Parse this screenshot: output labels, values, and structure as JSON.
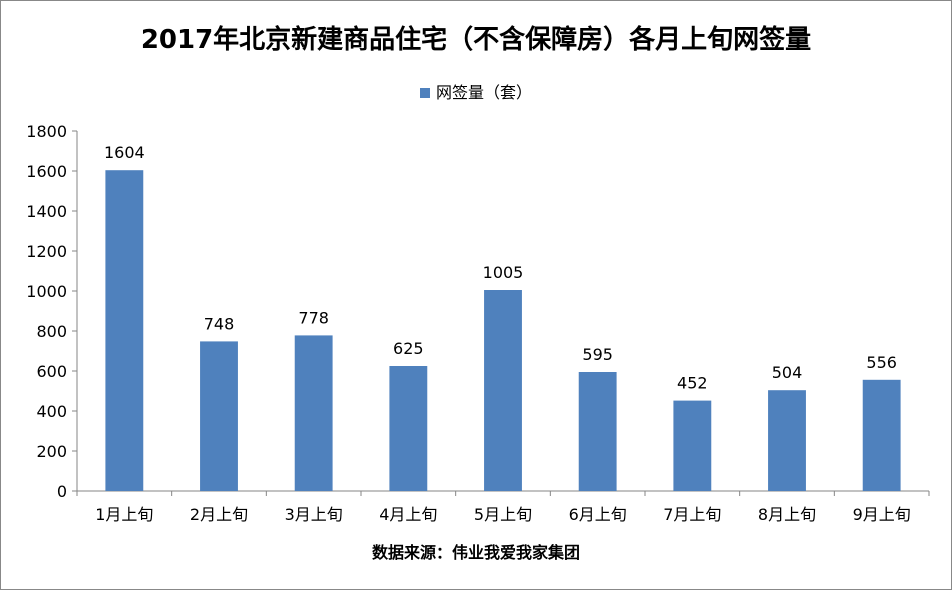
{
  "chart_data": {
    "type": "bar",
    "title": "2017年北京新建商品住宅（不含保障房）各月上旬网签量",
    "categories": [
      "1月上旬",
      "2月上旬",
      "3月上旬",
      "4月上旬",
      "5月上旬",
      "6月上旬",
      "7月上旬",
      "8月上旬",
      "9月上旬"
    ],
    "series": [
      {
        "name": "网签量（套）",
        "values": [
          1604,
          748,
          778,
          625,
          1005,
          595,
          452,
          504,
          556
        ],
        "color": "#4f81bd"
      }
    ],
    "ylim": [
      0,
      1800
    ],
    "yticks": [
      0,
      200,
      400,
      600,
      800,
      1000,
      1200,
      1400,
      1600,
      1800
    ],
    "grid": false,
    "legend_position": "top",
    "data_labels": true
  },
  "source_note": "数据来源：伟业我爱我家集团"
}
